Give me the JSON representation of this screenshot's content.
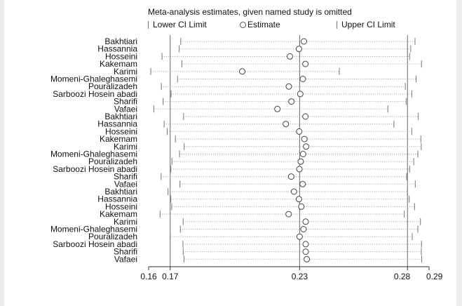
{
  "chart_data": {
    "type": "forest",
    "title": "Meta-analysis estimates, given named study is omitted",
    "legend": {
      "lower": "Lower CI Limit",
      "estimate": "Estimate",
      "upper": "Upper CI Limit"
    },
    "xlim": [
      0.16,
      0.29
    ],
    "ticks": [
      0.16,
      0.17,
      0.23,
      0.28,
      0.29
    ],
    "tick_labels": [
      "0.16",
      "0.17",
      "0.23",
      "0.28",
      "0.29"
    ],
    "reference_lines": [
      0.17,
      0.23,
      0.28
    ],
    "studies": [
      {
        "name": "Bakhtiari",
        "lower": 0.1749,
        "estimate": 0.232,
        "upper": 0.2835
      },
      {
        "name": "Hassannia",
        "lower": 0.1742,
        "estimate": 0.2297,
        "upper": 0.2815
      },
      {
        "name": "Hosseini",
        "lower": 0.1662,
        "estimate": 0.2255,
        "upper": 0.281
      },
      {
        "name": "Kakemam",
        "lower": 0.1754,
        "estimate": 0.2327,
        "upper": 0.2865
      },
      {
        "name": "Karimi",
        "lower": 0.161,
        "estimate": 0.2034,
        "upper": 0.2484
      },
      {
        "name": "Momeni-Ghaleghasemi",
        "lower": 0.1734,
        "estimate": 0.2315,
        "upper": 0.284
      },
      {
        "name": "Pouralizadeh",
        "lower": 0.1659,
        "estimate": 0.225,
        "upper": 0.279
      },
      {
        "name": "Sarboozi Hosein abadi",
        "lower": 0.1704,
        "estimate": 0.2303,
        "upper": 0.282
      },
      {
        "name": "Sharifi",
        "lower": 0.1667,
        "estimate": 0.2262,
        "upper": 0.2794
      },
      {
        "name": "Vafaei",
        "lower": 0.1624,
        "estimate": 0.2197,
        "upper": 0.2709
      },
      {
        "name": "Bakhtiari",
        "lower": 0.1762,
        "estimate": 0.2327,
        "upper": 0.285
      },
      {
        "name": "Hassannia",
        "lower": 0.1672,
        "estimate": 0.2236,
        "upper": 0.2737
      },
      {
        "name": "Hosseini",
        "lower": 0.1686,
        "estimate": 0.2298,
        "upper": 0.282
      },
      {
        "name": "Kakemam",
        "lower": 0.1724,
        "estimate": 0.2322,
        "upper": 0.2862
      },
      {
        "name": "Karimi",
        "lower": 0.1765,
        "estimate": 0.233,
        "upper": 0.2864
      },
      {
        "name": "Momeni-Ghaleghasemi",
        "lower": 0.1743,
        "estimate": 0.2316,
        "upper": 0.2848
      },
      {
        "name": "Pouralizadeh",
        "lower": 0.1708,
        "estimate": 0.2305,
        "upper": 0.2829
      },
      {
        "name": "Sarboozi Hosein abadi",
        "lower": 0.1703,
        "estimate": 0.2299,
        "upper": 0.281
      },
      {
        "name": "Sharifi",
        "lower": 0.1658,
        "estimate": 0.2261,
        "upper": 0.2796
      },
      {
        "name": "Vafaei",
        "lower": 0.1745,
        "estimate": 0.2314,
        "upper": 0.2836
      },
      {
        "name": "Bakhtiari",
        "lower": 0.169,
        "estimate": 0.2274,
        "upper": 0.28
      },
      {
        "name": "Hassannia",
        "lower": 0.1703,
        "estimate": 0.2297,
        "upper": 0.2808
      },
      {
        "name": "Hosseini",
        "lower": 0.1707,
        "estimate": 0.2308,
        "upper": 0.2833
      },
      {
        "name": "Kakemam",
        "lower": 0.1653,
        "estimate": 0.2249,
        "upper": 0.2785
      },
      {
        "name": "Karimi",
        "lower": 0.176,
        "estimate": 0.2328,
        "upper": 0.286
      },
      {
        "name": "Momeni-Ghaleghasemi",
        "lower": 0.1747,
        "estimate": 0.2318,
        "upper": 0.2848
      },
      {
        "name": "Pouralizadeh",
        "lower": 0.17,
        "estimate": 0.23,
        "upper": 0.2822
      },
      {
        "name": "Sarboozi Hosein abadi",
        "lower": 0.1759,
        "estimate": 0.2328,
        "upper": 0.2865
      },
      {
        "name": "Sharifi",
        "lower": 0.176,
        "estimate": 0.2328,
        "upper": 0.2864
      },
      {
        "name": "Vafaei",
        "lower": 0.1764,
        "estimate": 0.2333,
        "upper": 0.2866
      }
    ]
  }
}
